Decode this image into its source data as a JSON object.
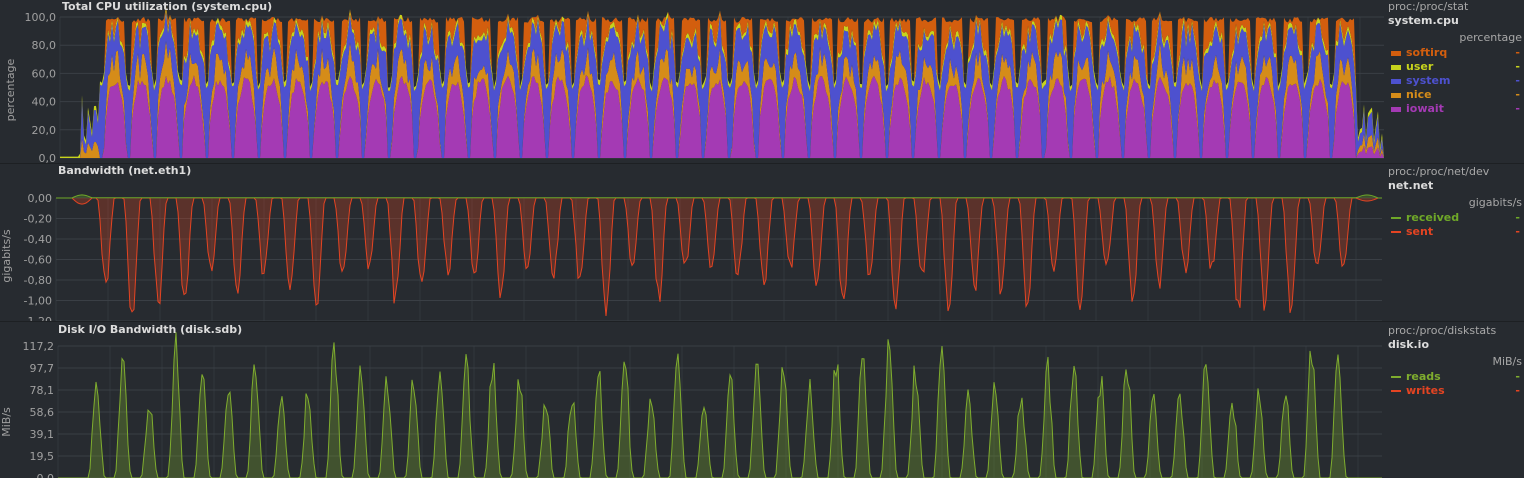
{
  "colors": {
    "softirq": "#d35e0e",
    "user": "#c7d31d",
    "system": "#4d51cf",
    "nice": "#d58c19",
    "iowait": "#a43ab4",
    "received": "#6fa828",
    "sent": "#e44422",
    "reads": "#7fad2e",
    "writes": "#e44422",
    "grid": "#3a3f45",
    "axis_text": "#a0a0a0"
  },
  "chart_data": [
    {
      "type": "area",
      "title": "Total CPU utilization (system.cpu)",
      "ylabel": "percentage",
      "ylim": [
        0,
        100
      ],
      "yticks": [
        "100,0",
        "80,0",
        "60,0",
        "40,0",
        "20,0",
        "0,0"
      ],
      "stacked": true,
      "source": "proc:/proc/stat",
      "context": "system.cpu",
      "units": "percentage",
      "legend": [
        {
          "name": "softirq",
          "color": "#d35e0e",
          "value": "-"
        },
        {
          "name": "user",
          "color": "#c7d31d",
          "value": "-"
        },
        {
          "name": "system",
          "color": "#4d51cf",
          "value": "-"
        },
        {
          "name": "nice",
          "color": "#d58c19",
          "value": "-"
        },
        {
          "name": "iowait",
          "color": "#a43ab4",
          "value": "-"
        }
      ],
      "cycles": 48,
      "pattern_idle": {
        "softirq": 0,
        "user": 3,
        "system": 50,
        "nice": 0,
        "iowait": 0
      },
      "pattern_peak": {
        "softirq": 18,
        "user": 2,
        "system": 20,
        "nice": 5,
        "iowait": 55
      }
    },
    {
      "type": "area",
      "title": "Bandwidth (net.eth1)",
      "ylabel": "gigabits/s",
      "ylim": [
        -1.2,
        0.04
      ],
      "yticks": [
        "0,00",
        "-0,20",
        "-0,40",
        "-0,60",
        "-0,80",
        "-1,00",
        "-1,20"
      ],
      "source": "proc:/proc/net/dev",
      "context": "net.net",
      "units": "gigabits/s",
      "legend": [
        {
          "name": "received",
          "color": "#6fa828",
          "value": "-"
        },
        {
          "name": "sent",
          "color": "#e44422",
          "value": "-"
        }
      ],
      "cycles": 48,
      "sent_minimum_range": [
        -0.7,
        -1.2
      ]
    },
    {
      "type": "area",
      "title": "Disk I/O Bandwidth (disk.sdb)",
      "ylabel": "MiB/s",
      "ylim": [
        0,
        125
      ],
      "yticks": [
        "117,2",
        "97,7",
        "78,1",
        "58,6",
        "39,1",
        "19,5",
        "0,0"
      ],
      "source": "proc:/proc/diskstats",
      "context": "disk.io",
      "units": "MiB/s",
      "legend": [
        {
          "name": "reads",
          "color": "#7fad2e",
          "value": "-"
        },
        {
          "name": "writes",
          "color": "#e44422",
          "value": "-"
        }
      ],
      "cycles": 48,
      "reads_peak_range": [
        70,
        120
      ]
    }
  ]
}
